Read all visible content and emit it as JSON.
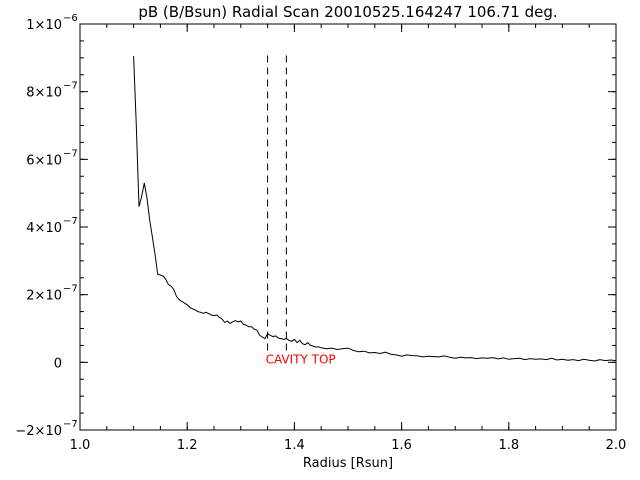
{
  "chart_data": {
    "type": "line",
    "title": "pB (B/Bsun) Radial Scan 20010525.164247 106.71 deg.",
    "xlabel": "Radius [Rsun]",
    "ylabel": "",
    "xlim": [
      1.0,
      2.0
    ],
    "ylim": [
      -2e-07,
      1e-06
    ],
    "grid": false,
    "x_ticks": [
      {
        "value": 1.0,
        "label": "1.0"
      },
      {
        "value": 1.2,
        "label": "1.2"
      },
      {
        "value": 1.4,
        "label": "1.4"
      },
      {
        "value": 1.6,
        "label": "1.6"
      },
      {
        "value": 1.8,
        "label": "1.8"
      },
      {
        "value": 2.0,
        "label": "2.0"
      }
    ],
    "y_ticks": [
      {
        "value": -2e-07,
        "mantissa": "−2×10",
        "exp": "−7"
      },
      {
        "value": 0,
        "mantissa": "0",
        "exp": ""
      },
      {
        "value": 2e-07,
        "mantissa": "2×10",
        "exp": "−7"
      },
      {
        "value": 4e-07,
        "mantissa": "4×10",
        "exp": "−7"
      },
      {
        "value": 6e-07,
        "mantissa": "6×10",
        "exp": "−7"
      },
      {
        "value": 8e-07,
        "mantissa": "8×10",
        "exp": "−7"
      },
      {
        "value": 1e-06,
        "mantissa": "1×10",
        "exp": "−6"
      }
    ],
    "series": [
      {
        "color": "#000000",
        "points": [
          [
            1.1,
            9.05e-07
          ],
          [
            1.105,
            7e-07
          ],
          [
            1.11,
            4.6e-07
          ],
          [
            1.115,
            4.9e-07
          ],
          [
            1.12,
            5.3e-07
          ],
          [
            1.125,
            4.85e-07
          ],
          [
            1.13,
            4.2e-07
          ],
          [
            1.135,
            3.7e-07
          ],
          [
            1.14,
            3.2e-07
          ],
          [
            1.145,
            2.6e-07
          ],
          [
            1.15,
            2.58e-07
          ],
          [
            1.155,
            2.55e-07
          ],
          [
            1.16,
            2.45e-07
          ],
          [
            1.165,
            2.3e-07
          ],
          [
            1.17,
            2.25e-07
          ],
          [
            1.175,
            2.15e-07
          ],
          [
            1.18,
            1.95e-07
          ],
          [
            1.185,
            1.85e-07
          ],
          [
            1.19,
            1.8e-07
          ],
          [
            1.195,
            1.75e-07
          ],
          [
            1.2,
            1.7e-07
          ],
          [
            1.205,
            1.62e-07
          ],
          [
            1.21,
            1.58e-07
          ],
          [
            1.215,
            1.55e-07
          ],
          [
            1.22,
            1.5e-07
          ],
          [
            1.225,
            1.48e-07
          ],
          [
            1.23,
            1.45e-07
          ],
          [
            1.235,
            1.48e-07
          ],
          [
            1.24,
            1.44e-07
          ],
          [
            1.245,
            1.4e-07
          ],
          [
            1.25,
            1.38e-07
          ],
          [
            1.255,
            1.4e-07
          ],
          [
            1.26,
            1.33e-07
          ],
          [
            1.265,
            1.28e-07
          ],
          [
            1.27,
            1.18e-07
          ],
          [
            1.275,
            1.22e-07
          ],
          [
            1.28,
            1.15e-07
          ],
          [
            1.285,
            1.2e-07
          ],
          [
            1.29,
            1.23e-07
          ],
          [
            1.295,
            1.2e-07
          ],
          [
            1.3,
            1.22e-07
          ],
          [
            1.305,
            1.12e-07
          ],
          [
            1.31,
            1.1e-07
          ],
          [
            1.315,
            1.05e-07
          ],
          [
            1.32,
            1.05e-07
          ],
          [
            1.325,
            9.8e-08
          ],
          [
            1.33,
            9.5e-08
          ],
          [
            1.335,
            8e-08
          ],
          [
            1.34,
            7.5e-08
          ],
          [
            1.345,
            7e-08
          ],
          [
            1.35,
            8.5e-08
          ],
          [
            1.355,
            8e-08
          ],
          [
            1.36,
            7.6e-08
          ],
          [
            1.365,
            7.8e-08
          ],
          [
            1.37,
            7.2e-08
          ],
          [
            1.375,
            7e-08
          ],
          [
            1.38,
            6.8e-08
          ],
          [
            1.385,
            7e-08
          ],
          [
            1.39,
            6.5e-08
          ],
          [
            1.395,
            6.2e-08
          ],
          [
            1.4,
            6.8e-08
          ],
          [
            1.405,
            5.8e-08
          ],
          [
            1.41,
            6.5e-08
          ],
          [
            1.415,
            5.5e-08
          ],
          [
            1.42,
            5.2e-08
          ],
          [
            1.425,
            5.8e-08
          ],
          [
            1.43,
            5e-08
          ],
          [
            1.435,
            4.8e-08
          ],
          [
            1.44,
            4.5e-08
          ],
          [
            1.445,
            4.6e-08
          ],
          [
            1.45,
            4.3e-08
          ],
          [
            1.46,
            4e-08
          ],
          [
            1.47,
            4.2e-08
          ],
          [
            1.48,
            3.8e-08
          ],
          [
            1.49,
            4e-08
          ],
          [
            1.5,
            4.2e-08
          ],
          [
            1.51,
            3.5e-08
          ],
          [
            1.52,
            3.1e-08
          ],
          [
            1.53,
            3.3e-08
          ],
          [
            1.54,
            2.8e-08
          ],
          [
            1.55,
            2.9e-08
          ],
          [
            1.56,
            2.6e-08
          ],
          [
            1.57,
            3e-08
          ],
          [
            1.58,
            2.4e-08
          ],
          [
            1.59,
            2.2e-08
          ],
          [
            1.6,
            1.8e-08
          ],
          [
            1.61,
            2.2e-08
          ],
          [
            1.62,
            2e-08
          ],
          [
            1.63,
            1.9e-08
          ],
          [
            1.64,
            1.6e-08
          ],
          [
            1.65,
            1.8e-08
          ],
          [
            1.66,
            1.7e-08
          ],
          [
            1.67,
            1.6e-08
          ],
          [
            1.68,
            1.9e-08
          ],
          [
            1.69,
            1.5e-08
          ],
          [
            1.7,
            1.2e-08
          ],
          [
            1.71,
            1.5e-08
          ],
          [
            1.72,
            1.3e-08
          ],
          [
            1.73,
            1.4e-08
          ],
          [
            1.74,
            1.1e-08
          ],
          [
            1.75,
            1.3e-08
          ],
          [
            1.76,
            1.2e-08
          ],
          [
            1.77,
            1.4e-08
          ],
          [
            1.78,
            1e-08
          ],
          [
            1.79,
            1.3e-08
          ],
          [
            1.8,
            9e-09
          ],
          [
            1.81,
            1.1e-08
          ],
          [
            1.82,
            1.2e-08
          ],
          [
            1.83,
            8e-09
          ],
          [
            1.84,
            1.1e-08
          ],
          [
            1.85,
            9e-09
          ],
          [
            1.86,
            1e-08
          ],
          [
            1.87,
            8e-09
          ],
          [
            1.88,
            1.2e-08
          ],
          [
            1.89,
            7e-09
          ],
          [
            1.9,
            9e-09
          ],
          [
            1.91,
            6e-09
          ],
          [
            1.92,
            8e-09
          ],
          [
            1.93,
            5e-09
          ],
          [
            1.94,
            9e-09
          ],
          [
            1.95,
            6e-09
          ],
          [
            1.96,
            4e-09
          ],
          [
            1.97,
            8e-09
          ],
          [
            1.98,
            5e-09
          ],
          [
            1.99,
            7e-09
          ],
          [
            2.0,
            5e-09
          ]
        ]
      }
    ],
    "vlines": [
      {
        "x": 1.35,
        "y_range": [
          3.5e-08,
          9.1e-07
        ],
        "style": "dashed"
      },
      {
        "x": 1.385,
        "y_range": [
          3.5e-08,
          9.1e-07
        ],
        "style": "dashed"
      }
    ],
    "annotations": [
      {
        "text": "CAVITY TOP",
        "x": 1.35,
        "y": 2e-10,
        "color": "#ff0000"
      }
    ]
  }
}
